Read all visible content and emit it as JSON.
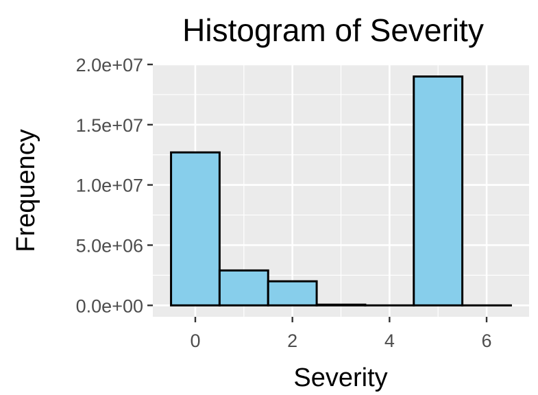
{
  "chart_data": {
    "type": "bar",
    "title": "Histogram of Severity",
    "xlabel": "Severity",
    "ylabel": "Frequency",
    "bin_width": 1,
    "bins": [
      {
        "center": 0,
        "count": 12700000
      },
      {
        "center": 1,
        "count": 2900000
      },
      {
        "center": 2,
        "count": 2000000
      },
      {
        "center": 3,
        "count": 60000
      },
      {
        "center": 4,
        "count": 0
      },
      {
        "center": 5,
        "count": 19000000
      },
      {
        "center": 6,
        "count": 0
      }
    ],
    "xlim": [
      -0.875,
      6.875
    ],
    "ylim": [
      -950000,
      20000000
    ],
    "x_ticks": [
      0,
      2,
      4,
      6
    ],
    "x_tick_labels": [
      "0",
      "2",
      "4",
      "6"
    ],
    "y_ticks": [
      0,
      5000000,
      10000000,
      15000000,
      20000000
    ],
    "y_tick_labels": [
      "0.0e+00",
      "5.0e+06",
      "1.0e+07",
      "1.5e+07",
      "2.0e+07"
    ],
    "grid": true,
    "legend": "none",
    "colors": {
      "bar_fill": "#87CEEB",
      "bar_outline": "#000000",
      "panel": "#EBEBEB",
      "grid": "#FFFFFF",
      "tick_text": "#4D4D4D"
    }
  }
}
